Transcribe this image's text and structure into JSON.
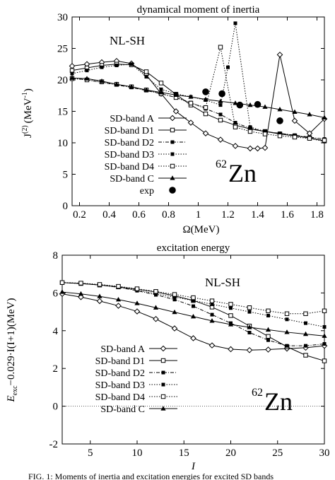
{
  "chart_data": [
    {
      "type": "line",
      "title": "dynamical moment of inertia",
      "xlabel": "Ω(MeV)",
      "ylabel_symbol": "J",
      "ylabel_sup": "(2)",
      "ylabel_unit": "(MeV",
      "ylabel_unit_sup": "-1",
      "ylabel_close": ")",
      "xlim": [
        0.15,
        1.85
      ],
      "ylim": [
        0,
        30
      ],
      "xticks": [
        "0.2",
        "0.4",
        "0.6",
        "0.8",
        "1",
        "1.2",
        "1.4",
        "1.6",
        "1.8"
      ],
      "yticks": [
        "0",
        "5",
        "10",
        "15",
        "20",
        "25",
        "30"
      ],
      "grid": false,
      "legend_position": "bottom-left",
      "annotation": "NL-SH",
      "nucleus": {
        "mass": "62",
        "symbol": "Zn"
      },
      "series": [
        {
          "name": "SD-band A",
          "marker": "diamond",
          "dash": "solid",
          "x": [
            0.15,
            0.25,
            0.35,
            0.45,
            0.55,
            0.65,
            0.75,
            0.85,
            0.95,
            1.05,
            1.15,
            1.25,
            1.35,
            1.4,
            1.45,
            1.55,
            1.65,
            1.75,
            1.85
          ],
          "y": [
            22.2,
            22.5,
            22.8,
            23.0,
            22.6,
            20.8,
            17.8,
            15.0,
            13.2,
            11.5,
            10.5,
            9.5,
            9.1,
            9.1,
            9.2,
            24.0,
            13.5,
            11.5,
            13.8
          ]
        },
        {
          "name": "SD-band D1",
          "marker": "open-square",
          "dash": "solid",
          "x": [
            0.15,
            0.25,
            0.35,
            0.45,
            0.55,
            0.65,
            0.75,
            0.85,
            0.95,
            1.05,
            1.15,
            1.25,
            1.35,
            1.45,
            1.55,
            1.65,
            1.75,
            1.85
          ],
          "y": [
            21.5,
            21.9,
            22.3,
            22.5,
            22.4,
            21.3,
            19.5,
            17.7,
            16.0,
            14.6,
            13.6,
            12.8,
            12.2,
            11.8,
            11.4,
            11.1,
            10.8,
            10.3
          ]
        },
        {
          "name": "SD-band D2",
          "marker": "filled-square",
          "dash": "dashdot",
          "x": [
            0.15,
            0.25,
            0.35,
            0.45,
            0.55,
            0.65,
            0.75,
            0.85,
            0.95,
            1.05,
            1.15,
            1.25,
            1.35,
            1.45,
            1.55,
            1.65,
            1.75,
            1.85
          ],
          "y": [
            20.3,
            20.0,
            19.6,
            19.2,
            18.8,
            18.3,
            17.8,
            17.2,
            16.4,
            15.4,
            14.5,
            13.2,
            12.3,
            11.8,
            11.5,
            11.2,
            10.9,
            10.6
          ]
        },
        {
          "name": "SD-band D3",
          "marker": "filled-square",
          "dash": "dotted",
          "x": [
            0.15,
            0.25,
            0.35,
            0.45,
            0.55,
            0.65,
            0.75,
            0.85,
            0.95,
            1.05,
            1.15,
            1.2,
            1.25,
            1.35,
            1.45,
            1.55,
            1.65,
            1.75,
            1.85
          ],
          "y": [
            21.0,
            21.5,
            22.0,
            22.3,
            22.5,
            20.5,
            18.5,
            17.8,
            17.3,
            16.8,
            16.0,
            22.0,
            29.0,
            12.5,
            11.8,
            11.5,
            11.2,
            10.7,
            10.2
          ]
        },
        {
          "name": "SD-band D4",
          "marker": "open-square",
          "dash": "dotted",
          "x": [
            0.15,
            0.25,
            0.35,
            0.45,
            0.55,
            0.65,
            0.75,
            0.85,
            0.95,
            1.05,
            1.15,
            1.25,
            1.35,
            1.45,
            1.55,
            1.65,
            1.75,
            1.85
          ],
          "y": [
            20.2,
            20.0,
            19.7,
            19.3,
            18.9,
            18.4,
            17.8,
            17.2,
            16.3,
            15.6,
            25.2,
            12.5,
            11.8,
            11.4,
            11.1,
            10.9,
            10.7,
            10.4
          ]
        },
        {
          "name": "SD-band C",
          "marker": "triangle",
          "dash": "solid",
          "x": [
            0.15,
            0.25,
            0.35,
            0.45,
            0.55,
            0.65,
            0.75,
            0.85,
            0.95,
            1.05,
            1.15,
            1.25,
            1.35,
            1.45,
            1.55,
            1.65,
            1.75,
            1.85
          ],
          "y": [
            20.3,
            20.2,
            19.8,
            19.3,
            18.9,
            18.4,
            18.0,
            17.6,
            17.3,
            16.9,
            16.6,
            16.3,
            16.0,
            15.7,
            15.3,
            14.9,
            14.5,
            14.0
          ]
        },
        {
          "name": "exp",
          "marker": "filled-circle",
          "dash": "none",
          "x": [
            1.05,
            1.16,
            1.28,
            1.4,
            1.55
          ],
          "y": [
            18.1,
            17.8,
            16.0,
            16.1,
            13.5
          ]
        }
      ]
    },
    {
      "type": "line",
      "title": "excitation energy",
      "xlabel": "I",
      "ylabel": "E",
      "ylabel_sub": "exc",
      "ylabel_rest": "−0.029·I(I+1)(MeV)",
      "xlim": [
        2,
        30
      ],
      "ylim": [
        -2,
        8
      ],
      "xticks": [
        "5",
        "10",
        "15",
        "20",
        "25",
        "30"
      ],
      "yticks": [
        "-2",
        "0",
        "2",
        "4",
        "6",
        "8"
      ],
      "grid": false,
      "zero_line": true,
      "legend_position": "bottom-left",
      "annotation": "NL-SH",
      "nucleus": {
        "mass": "62",
        "symbol": "Zn"
      },
      "series": [
        {
          "name": "SD-band A",
          "marker": "diamond",
          "dash": "solid",
          "x": [
            2,
            4,
            6,
            8,
            10,
            12,
            14,
            16,
            18,
            20,
            22,
            24,
            26,
            28,
            30
          ],
          "y": [
            5.95,
            5.78,
            5.57,
            5.32,
            5.02,
            4.62,
            4.12,
            3.6,
            3.22,
            3.02,
            2.97,
            3.0,
            3.05,
            3.1,
            3.2
          ]
        },
        {
          "name": "SD-band D1",
          "marker": "open-square",
          "dash": "solid",
          "x": [
            2,
            4,
            6,
            8,
            10,
            12,
            14,
            16,
            18,
            20,
            22,
            24,
            26,
            28,
            30
          ],
          "y": [
            6.55,
            6.5,
            6.42,
            6.32,
            6.2,
            6.05,
            5.85,
            5.6,
            5.25,
            4.8,
            4.25,
            3.7,
            3.15,
            2.7,
            2.4
          ]
        },
        {
          "name": "SD-band D2",
          "marker": "filled-square",
          "dash": "dashdot",
          "x": [
            2,
            4,
            6,
            8,
            10,
            12,
            14,
            16,
            18,
            20,
            22,
            24,
            26,
            28,
            30
          ],
          "y": [
            6.55,
            6.5,
            6.42,
            6.3,
            6.12,
            5.9,
            5.65,
            5.3,
            4.85,
            4.4,
            3.9,
            3.5,
            3.2,
            3.2,
            3.3
          ]
        },
        {
          "name": "SD-band D3",
          "marker": "filled-square",
          "dash": "dotted",
          "x": [
            2,
            4,
            6,
            8,
            10,
            12,
            14,
            16,
            18,
            20,
            22,
            24,
            26,
            28,
            30
          ],
          "y": [
            6.55,
            6.5,
            6.42,
            6.3,
            6.15,
            5.95,
            5.78,
            5.6,
            5.4,
            5.2,
            5.0,
            4.8,
            4.6,
            4.4,
            4.2
          ]
        },
        {
          "name": "SD-band D4",
          "marker": "open-square",
          "dash": "dotted",
          "x": [
            2,
            4,
            6,
            8,
            10,
            12,
            14,
            16,
            18,
            20,
            22,
            24,
            26,
            28,
            30
          ],
          "y": [
            6.55,
            6.52,
            6.45,
            6.35,
            6.22,
            6.08,
            5.92,
            5.75,
            5.58,
            5.4,
            5.22,
            5.05,
            4.9,
            4.9,
            5.05
          ]
        },
        {
          "name": "SD-band C",
          "marker": "triangle",
          "dash": "solid",
          "x": [
            2,
            4,
            6,
            8,
            10,
            12,
            14,
            16,
            18,
            20,
            22,
            24,
            26,
            28,
            30
          ],
          "y": [
            6.05,
            5.95,
            5.82,
            5.65,
            5.45,
            5.22,
            4.98,
            4.75,
            4.52,
            4.33,
            4.18,
            4.05,
            3.92,
            3.82,
            3.72
          ]
        }
      ]
    }
  ],
  "caption": "FIG. 1: Moments of inertia and excitation energies for excited SD bands"
}
